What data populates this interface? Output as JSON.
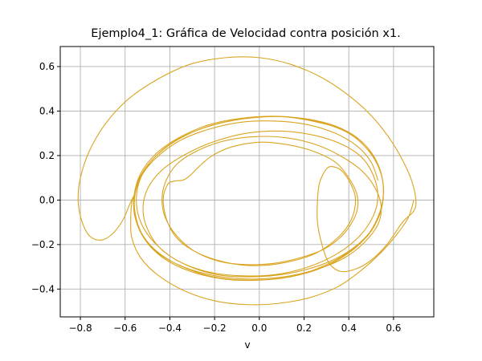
{
  "chart_data": {
    "type": "line",
    "title": "Ejemplo4_1: Gráfica de Velocidad contra posición x1.",
    "xlabel": "v",
    "ylabel": "",
    "xlim": [
      -0.89,
      0.78
    ],
    "ylim": [
      -0.525,
      0.69
    ],
    "xticks": [
      -0.8,
      -0.6,
      -0.4,
      -0.2,
      0.0,
      0.2,
      0.4,
      0.6
    ],
    "xtick_labels": [
      "−0.8",
      "−0.6",
      "−0.4",
      "−0.2",
      "0.0",
      "0.2",
      "0.4",
      "0.6"
    ],
    "yticks": [
      -0.4,
      -0.2,
      0.0,
      0.2,
      0.4,
      0.6
    ],
    "ytick_labels": [
      "−0.4",
      "−0.2",
      "0.0",
      "0.2",
      "0.4",
      "0.6"
    ],
    "grid": true,
    "series": [
      {
        "color": "#DAA520",
        "points": [
          [
            0.69,
            0.0
          ],
          [
            0.68,
            -0.04
          ],
          [
            0.66,
            -0.09
          ],
          [
            0.61,
            -0.16
          ],
          [
            0.54,
            -0.24
          ],
          [
            0.45,
            -0.32
          ],
          [
            0.35,
            -0.39
          ],
          [
            0.22,
            -0.44
          ],
          [
            0.08,
            -0.465
          ],
          [
            -0.05,
            -0.47
          ],
          [
            -0.19,
            -0.455
          ],
          [
            -0.33,
            -0.41
          ],
          [
            -0.45,
            -0.34
          ],
          [
            -0.53,
            -0.26
          ],
          [
            -0.57,
            -0.17
          ],
          [
            -0.575,
            -0.09
          ],
          [
            -0.57,
            -0.01
          ],
          [
            -0.56,
            0.02
          ],
          [
            -0.58,
            -0.02
          ],
          [
            -0.61,
            -0.09
          ],
          [
            -0.66,
            -0.155
          ],
          [
            -0.71,
            -0.18
          ],
          [
            -0.76,
            -0.16
          ],
          [
            -0.795,
            -0.09
          ],
          [
            -0.81,
            0.0
          ],
          [
            -0.8,
            0.1
          ],
          [
            -0.76,
            0.22
          ],
          [
            -0.69,
            0.34
          ],
          [
            -0.59,
            0.45
          ],
          [
            -0.46,
            0.54
          ],
          [
            -0.31,
            0.61
          ],
          [
            -0.15,
            0.64
          ],
          [
            0.0,
            0.64
          ],
          [
            0.14,
            0.61
          ],
          [
            0.28,
            0.55
          ],
          [
            0.4,
            0.47
          ],
          [
            0.5,
            0.38
          ],
          [
            0.58,
            0.28
          ],
          [
            0.64,
            0.18
          ],
          [
            0.68,
            0.09
          ],
          [
            0.7,
            0.0
          ],
          [
            0.69,
            -0.05
          ],
          [
            0.64,
            -0.1
          ],
          [
            0.57,
            -0.2
          ],
          [
            0.5,
            -0.27
          ],
          [
            0.43,
            -0.31
          ],
          [
            0.36,
            -0.32
          ],
          [
            0.31,
            -0.28
          ],
          [
            0.28,
            -0.2
          ],
          [
            0.26,
            -0.1
          ],
          [
            0.26,
            0.0
          ],
          [
            0.27,
            0.08
          ],
          [
            0.3,
            0.14
          ],
          [
            0.33,
            0.15
          ],
          [
            0.37,
            0.13
          ],
          [
            0.41,
            0.07
          ],
          [
            0.43,
            0.0
          ],
          [
            0.41,
            -0.09
          ],
          [
            0.35,
            -0.17
          ],
          [
            0.25,
            -0.24
          ],
          [
            0.12,
            -0.28
          ],
          [
            -0.02,
            -0.295
          ],
          [
            -0.15,
            -0.28
          ],
          [
            -0.27,
            -0.24
          ],
          [
            -0.36,
            -0.18
          ],
          [
            -0.41,
            -0.1
          ],
          [
            -0.43,
            0.0
          ],
          [
            -0.41,
            0.07
          ],
          [
            -0.38,
            0.085
          ],
          [
            -0.34,
            0.09
          ],
          [
            -0.31,
            0.11
          ],
          [
            -0.27,
            0.15
          ],
          [
            -0.21,
            0.2
          ],
          [
            -0.12,
            0.24
          ],
          [
            0.0,
            0.26
          ],
          [
            0.12,
            0.25
          ],
          [
            0.24,
            0.22
          ],
          [
            0.34,
            0.17
          ],
          [
            0.4,
            0.1
          ],
          [
            0.435,
            0.03
          ],
          [
            0.44,
            -0.03
          ],
          [
            0.42,
            -0.09
          ],
          [
            0.37,
            -0.16
          ],
          [
            0.29,
            -0.22
          ],
          [
            0.18,
            -0.26
          ],
          [
            0.06,
            -0.285
          ],
          [
            -0.06,
            -0.29
          ],
          [
            -0.18,
            -0.275
          ],
          [
            -0.29,
            -0.23
          ],
          [
            -0.37,
            -0.16
          ],
          [
            -0.42,
            -0.08
          ],
          [
            -0.435,
            0.0
          ],
          [
            -0.42,
            0.08
          ],
          [
            -0.37,
            0.16
          ],
          [
            -0.28,
            0.22
          ],
          [
            -0.16,
            0.265
          ],
          [
            -0.02,
            0.285
          ],
          [
            0.12,
            0.28
          ],
          [
            0.25,
            0.25
          ],
          [
            0.36,
            0.2
          ],
          [
            0.46,
            0.13
          ],
          [
            0.52,
            0.05
          ],
          [
            0.545,
            -0.03
          ],
          [
            0.53,
            -0.11
          ],
          [
            0.47,
            -0.19
          ],
          [
            0.38,
            -0.26
          ],
          [
            0.26,
            -0.31
          ],
          [
            0.11,
            -0.345
          ],
          [
            -0.05,
            -0.355
          ],
          [
            -0.2,
            -0.34
          ],
          [
            -0.34,
            -0.3
          ],
          [
            -0.45,
            -0.24
          ],
          [
            -0.52,
            -0.16
          ],
          [
            -0.555,
            -0.07
          ],
          [
            -0.56,
            0.02
          ],
          [
            -0.53,
            0.11
          ],
          [
            -0.46,
            0.2
          ],
          [
            -0.35,
            0.28
          ],
          [
            -0.2,
            0.34
          ],
          [
            -0.04,
            0.37
          ],
          [
            0.12,
            0.375
          ],
          [
            0.27,
            0.35
          ],
          [
            0.4,
            0.3
          ],
          [
            0.49,
            0.22
          ],
          [
            0.54,
            0.13
          ],
          [
            0.555,
            0.04
          ],
          [
            0.54,
            -0.06
          ],
          [
            0.49,
            -0.15
          ],
          [
            0.4,
            -0.23
          ],
          [
            0.28,
            -0.29
          ],
          [
            0.13,
            -0.33
          ],
          [
            -0.03,
            -0.345
          ],
          [
            -0.19,
            -0.335
          ],
          [
            -0.33,
            -0.29
          ],
          [
            -0.44,
            -0.22
          ],
          [
            -0.5,
            -0.13
          ],
          [
            -0.52,
            -0.04
          ],
          [
            -0.5,
            0.05
          ],
          [
            -0.44,
            0.13
          ],
          [
            -0.34,
            0.2
          ],
          [
            -0.21,
            0.26
          ],
          [
            -0.06,
            0.3
          ],
          [
            0.1,
            0.31
          ],
          [
            0.25,
            0.29
          ],
          [
            0.37,
            0.25
          ],
          [
            0.46,
            0.19
          ],
          [
            0.51,
            0.11
          ],
          [
            0.53,
            0.02
          ],
          [
            0.51,
            -0.07
          ],
          [
            0.45,
            -0.16
          ],
          [
            0.35,
            -0.24
          ],
          [
            0.22,
            -0.3
          ],
          [
            0.07,
            -0.335
          ],
          [
            -0.09,
            -0.34
          ],
          [
            -0.24,
            -0.32
          ],
          [
            -0.37,
            -0.27
          ],
          [
            -0.47,
            -0.19
          ],
          [
            -0.53,
            -0.1
          ],
          [
            -0.55,
            0.0
          ],
          [
            -0.53,
            0.1
          ],
          [
            -0.47,
            0.19
          ],
          [
            -0.37,
            0.27
          ],
          [
            -0.23,
            0.33
          ],
          [
            -0.07,
            0.365
          ],
          [
            0.09,
            0.375
          ],
          [
            0.24,
            0.36
          ],
          [
            0.37,
            0.32
          ],
          [
            0.47,
            0.25
          ],
          [
            0.53,
            0.16
          ],
          [
            0.555,
            0.06
          ],
          [
            0.545,
            -0.04
          ],
          [
            0.5,
            -0.14
          ],
          [
            0.42,
            -0.22
          ],
          [
            0.3,
            -0.29
          ],
          [
            0.16,
            -0.34
          ],
          [
            0.0,
            -0.36
          ],
          [
            -0.16,
            -0.355
          ],
          [
            -0.31,
            -0.32
          ],
          [
            -0.43,
            -0.26
          ],
          [
            -0.51,
            -0.18
          ],
          [
            -0.555,
            -0.08
          ],
          [
            -0.56,
            0.02
          ],
          [
            -0.53,
            0.12
          ],
          [
            -0.46,
            0.21
          ],
          [
            -0.36,
            0.28
          ],
          [
            -0.22,
            0.34
          ],
          [
            -0.06,
            0.37
          ],
          [
            0.1,
            0.375
          ],
          [
            0.26,
            0.35
          ],
          [
            0.39,
            0.31
          ],
          [
            0.48,
            0.24
          ],
          [
            0.535,
            0.15
          ],
          [
            0.555,
            0.05
          ],
          [
            0.54,
            -0.05
          ],
          [
            0.49,
            -0.15
          ],
          [
            0.41,
            -0.23
          ],
          [
            0.29,
            -0.3
          ],
          [
            0.14,
            -0.345
          ],
          [
            -0.02,
            -0.36
          ],
          [
            -0.18,
            -0.35
          ],
          [
            -0.32,
            -0.31
          ],
          [
            -0.44,
            -0.245
          ],
          [
            -0.52,
            -0.16
          ],
          [
            -0.555,
            -0.06
          ],
          [
            -0.555,
            0.03
          ],
          [
            -0.52,
            0.12
          ],
          [
            -0.45,
            0.2
          ],
          [
            -0.35,
            0.27
          ],
          [
            -0.22,
            0.32
          ],
          [
            -0.08,
            0.35
          ],
          [
            0.07,
            0.355
          ],
          [
            0.21,
            0.34
          ],
          [
            0.34,
            0.3
          ],
          [
            0.44,
            0.24
          ],
          [
            0.5,
            0.17
          ],
          [
            0.53,
            0.09
          ]
        ]
      }
    ]
  }
}
